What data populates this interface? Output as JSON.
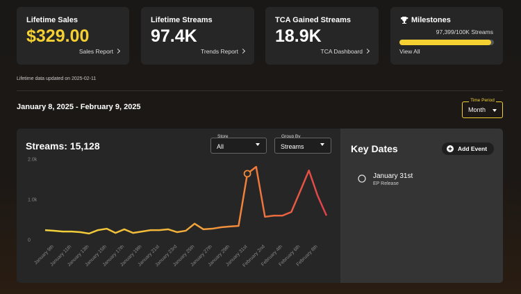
{
  "stats": [
    {
      "title": "Lifetime Sales",
      "value": "$329.00",
      "link": "Sales Report"
    },
    {
      "title": "Lifetime Streams",
      "value": "97.4K",
      "link": "Trends Report"
    },
    {
      "title": "TCA Gained Streams",
      "value": "18.9K",
      "link": "TCA Dashboard"
    }
  ],
  "milestones": {
    "title": "Milestones",
    "progress_label": "97,399/100K Streams",
    "current": 97399,
    "target": 100000,
    "link": "View All"
  },
  "updated_note": "Lifetime data updated on 2025-02-11",
  "date_range": "January 8, 2025 - February 9, 2025",
  "time_period": {
    "label": "Time Period",
    "value": "Month"
  },
  "filters": {
    "store": {
      "label": "Store",
      "value": "All"
    },
    "group_by": {
      "label": "Group By",
      "value": "Streams"
    }
  },
  "streams_chart": {
    "type": "line",
    "title": "Streams: 15,128",
    "categories": [
      null,
      "January 9th",
      null,
      "January 11th",
      null,
      "January 13th",
      null,
      "January 15th",
      null,
      "January 17th",
      null,
      "January 19th",
      null,
      "January 21st",
      null,
      "January 23rd",
      null,
      "January 25th",
      null,
      "January 27th",
      null,
      "January 29th",
      null,
      "January 31st",
      null,
      "February 2nd",
      null,
      "February 4th",
      null,
      "February 6th",
      null,
      "February 8th",
      null
    ],
    "values": [
      240,
      225,
      205,
      205,
      190,
      155,
      240,
      275,
      170,
      260,
      170,
      205,
      240,
      240,
      260,
      190,
      225,
      400,
      260,
      275,
      310,
      330,
      345,
      1640,
      1810,
      570,
      600,
      600,
      690,
      1200,
      1720,
      1090,
      600
    ],
    "ylim": [
      0,
      2000
    ],
    "yticks": [
      0,
      {
        "value": 1000,
        "label": "1.0k"
      },
      {
        "value": 2000,
        "label": "2.0k"
      }
    ]
  },
  "key_dates": {
    "title": "Key Dates",
    "button": "Add Event",
    "items": [
      {
        "date": "January 31st",
        "note": "EP Release"
      }
    ]
  }
}
